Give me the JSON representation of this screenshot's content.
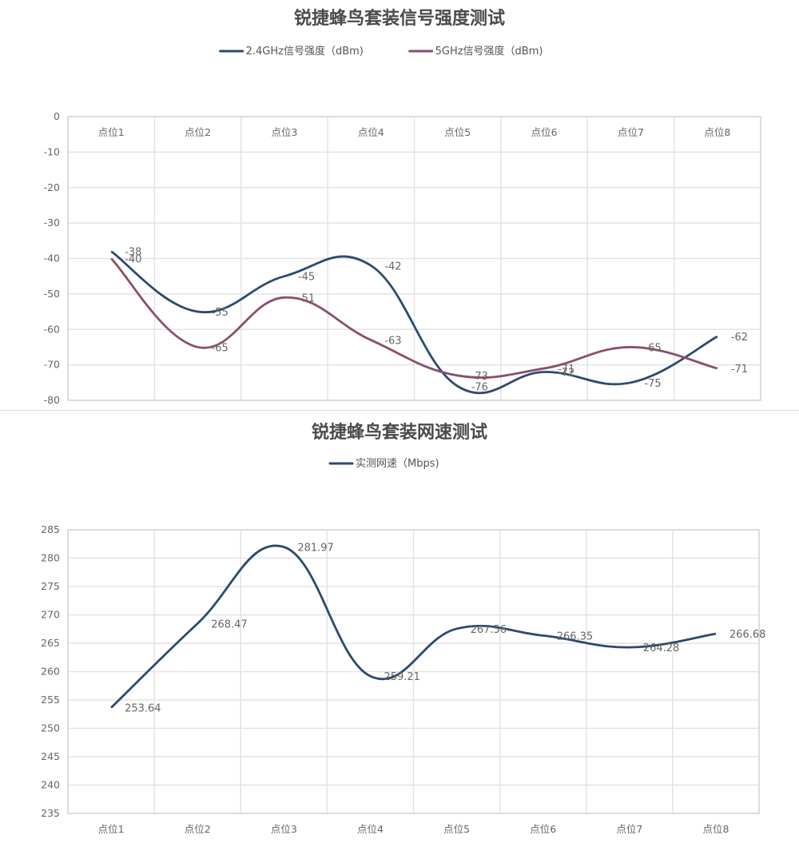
{
  "chart_data": [
    {
      "type": "line",
      "title": "锐捷蜂鸟套装信号强度测试",
      "categories": [
        "点位1",
        "点位2",
        "点位3",
        "点位4",
        "点位5",
        "点位6",
        "点位7",
        "点位8"
      ],
      "series": [
        {
          "name": "2.4GHz信号强度（dBm)",
          "color": "#2c4a6e",
          "values": [
            -38,
            -55,
            -45,
            -42,
            -76,
            -72,
            -75,
            -62
          ]
        },
        {
          "name": "5GHz信号强度（dBm)",
          "color": "#8a4f6e",
          "values": [
            -40,
            -65,
            -51,
            -63,
            -73,
            -71,
            -65,
            -71
          ]
        }
      ],
      "ylim": [
        -80,
        0
      ],
      "yticks": [
        0,
        -10,
        -20,
        -30,
        -40,
        -50,
        -60,
        -70,
        -80
      ],
      "xaxis_position": "top",
      "grid": true,
      "legend_position": "top",
      "smooth": true
    },
    {
      "type": "line",
      "title": "锐捷蜂鸟套装网速测试",
      "categories": [
        "点位1",
        "点位2",
        "点位3",
        "点位4",
        "点位5",
        "点位6",
        "点位7",
        "点位8"
      ],
      "series": [
        {
          "name": "实测网速（Mbps)",
          "color": "#2c4a6e",
          "values": [
            253.64,
            268.47,
            281.97,
            259.21,
            267.56,
            266.35,
            264.28,
            266.68
          ]
        }
      ],
      "ylim": [
        235,
        285
      ],
      "yticks": [
        285,
        280,
        275,
        270,
        265,
        260,
        255,
        250,
        245,
        240,
        235
      ],
      "xaxis_position": "bottom",
      "grid": true,
      "legend_position": "top",
      "smooth": true
    }
  ]
}
